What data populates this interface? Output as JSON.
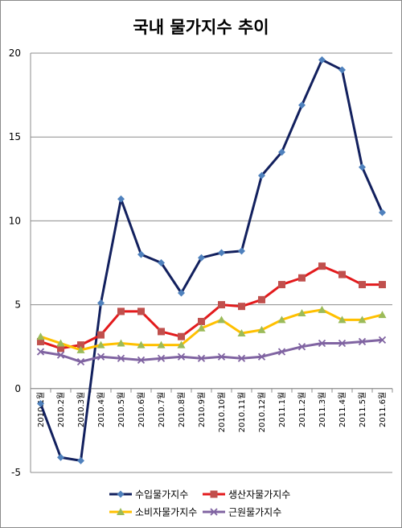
{
  "chart_data": {
    "type": "line",
    "title": "국내 물가지수 추이",
    "categories": [
      "2010.1월",
      "2010.2월",
      "2010.3월",
      "2010.4월",
      "2010.5월",
      "2010.6월",
      "2010.7월",
      "2010.8월",
      "2010.9월",
      "2010.10월",
      "2010.11월",
      "2010.12월",
      "2011.1월",
      "2011.2월",
      "2011.3월",
      "2011.4월",
      "2011.5월",
      "2011.6월"
    ],
    "ylim": [
      -5,
      20
    ],
    "yticks": [
      -5,
      0,
      5,
      10,
      15,
      20
    ],
    "grid": true,
    "legend_position": "bottom",
    "series": [
      {
        "name": "수입물가지수",
        "color": "#12205e",
        "marker": "diamond",
        "marker_color": "#4f81bd",
        "values": [
          -0.9,
          -4.1,
          -4.3,
          5.1,
          11.3,
          8.0,
          7.5,
          5.7,
          7.8,
          8.1,
          8.2,
          12.7,
          14.1,
          16.9,
          19.6,
          19.0,
          13.2,
          10.5
        ]
      },
      {
        "name": "생산자물가지수",
        "color": "#e31a1c",
        "marker": "square",
        "marker_color": "#c0504d",
        "values": [
          2.8,
          2.4,
          2.6,
          3.2,
          4.6,
          4.6,
          3.4,
          3.1,
          4.0,
          5.0,
          4.9,
          5.3,
          6.2,
          6.6,
          7.3,
          6.8,
          6.2,
          6.2
        ]
      },
      {
        "name": "소비자물가지수",
        "color": "#ffc000",
        "marker": "triangle",
        "marker_color": "#9bbb59",
        "values": [
          3.1,
          2.7,
          2.3,
          2.6,
          2.7,
          2.6,
          2.6,
          2.6,
          3.6,
          4.1,
          3.3,
          3.5,
          4.1,
          4.5,
          4.7,
          4.1,
          4.1,
          4.4
        ]
      },
      {
        "name": "근원물가지수",
        "color": "#8064a2",
        "marker": "cross",
        "marker_color": "#8064a2",
        "values": [
          2.2,
          2.0,
          1.6,
          1.9,
          1.8,
          1.7,
          1.8,
          1.9,
          1.8,
          1.9,
          1.8,
          1.9,
          2.2,
          2.5,
          2.7,
          2.7,
          2.8,
          2.9
        ]
      }
    ]
  }
}
